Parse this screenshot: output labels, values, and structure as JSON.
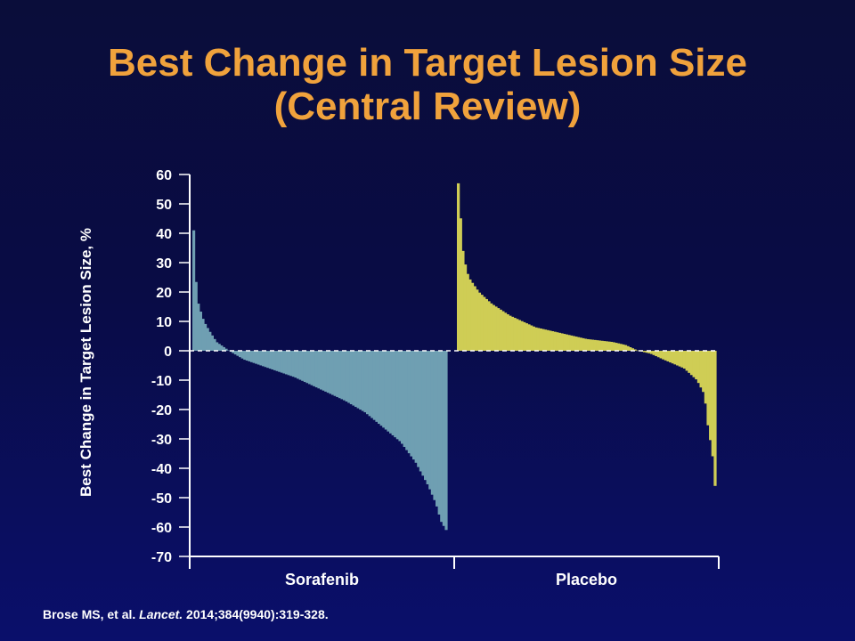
{
  "title_line1": "Best Change in Target Lesion Size",
  "title_line2": "(Central Review)",
  "citation": {
    "prefix": "Brose MS, et al. ",
    "journal": "Lancet.",
    "suffix": " 2014;384(9940):319-328."
  },
  "colors": {
    "title": "#f0a23c",
    "sorafenib": "#6f9fb2",
    "placebo": "#cfcd55",
    "background": "#090c45"
  },
  "chart_data": {
    "type": "bar",
    "ylabel": "Best Change in Target Lesion Size, %",
    "ylim": [
      -70,
      60
    ],
    "yticks": [
      60,
      50,
      40,
      30,
      20,
      10,
      0,
      -10,
      -20,
      -30,
      -40,
      -50,
      -60,
      -70
    ],
    "zero_line": "dashed",
    "groups": [
      "Sorafenib",
      "Placebo"
    ],
    "series": [
      {
        "name": "Sorafenib",
        "anchors": [
          [
            0,
            41
          ],
          [
            0.012,
            18
          ],
          [
            0.025,
            14
          ],
          [
            0.04,
            10
          ],
          [
            0.06,
            7
          ],
          [
            0.09,
            3
          ],
          [
            0.14,
            0
          ],
          [
            0.2,
            -3
          ],
          [
            0.3,
            -6
          ],
          [
            0.4,
            -9
          ],
          [
            0.5,
            -13
          ],
          [
            0.6,
            -17
          ],
          [
            0.68,
            -21
          ],
          [
            0.75,
            -26
          ],
          [
            0.82,
            -31
          ],
          [
            0.88,
            -38
          ],
          [
            0.93,
            -46
          ],
          [
            0.96,
            -52
          ],
          [
            0.98,
            -58
          ],
          [
            1.0,
            -61
          ]
        ]
      },
      {
        "name": "Placebo",
        "anchors": [
          [
            0,
            57
          ],
          [
            0.01,
            44
          ],
          [
            0.02,
            32
          ],
          [
            0.04,
            25
          ],
          [
            0.08,
            20
          ],
          [
            0.13,
            16
          ],
          [
            0.2,
            12
          ],
          [
            0.3,
            8
          ],
          [
            0.4,
            6
          ],
          [
            0.5,
            4
          ],
          [
            0.6,
            3
          ],
          [
            0.65,
            2
          ],
          [
            0.7,
            0
          ],
          [
            0.75,
            -1
          ],
          [
            0.8,
            -3
          ],
          [
            0.88,
            -6
          ],
          [
            0.93,
            -10
          ],
          [
            0.96,
            -15
          ],
          [
            0.97,
            -24
          ],
          [
            0.99,
            -35
          ],
          [
            1.0,
            -46
          ]
        ]
      }
    ]
  }
}
